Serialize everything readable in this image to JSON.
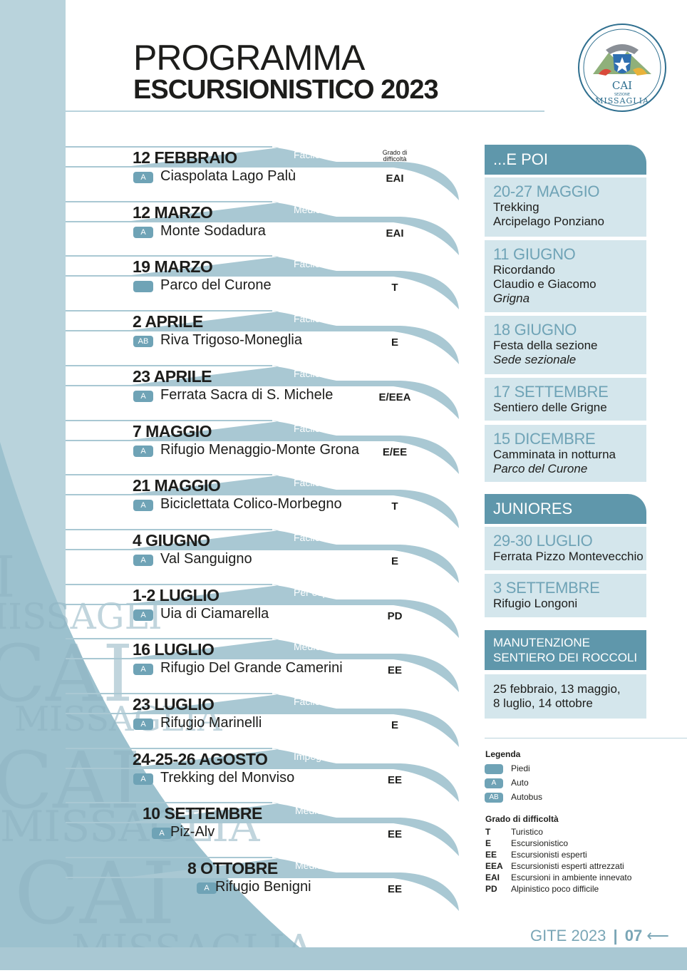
{
  "title": {
    "line1": "PROGRAMMA",
    "line2": "ESCURSIONISTICO 2023"
  },
  "logo": {
    "text": "CAI",
    "subtext": "SEZIONE",
    "name": "MISSAGLIA"
  },
  "grade_header": {
    "line1": "Grado di",
    "line2": "difficoltà"
  },
  "excursions": [
    {
      "date": "12 FEBBRAIO",
      "level": "Facile",
      "transport": "A",
      "place": "Ciaspolata Lago Palù",
      "grade": "EAI"
    },
    {
      "date": "12 MARZO",
      "level": "Medio impegno",
      "transport": "A",
      "place": "Monte Sodadura",
      "grade": "EAI"
    },
    {
      "date": "19 MARZO",
      "level": "Facile",
      "transport": "",
      "place": "Parco del Curone",
      "grade": "T"
    },
    {
      "date": "2 APRILE",
      "level": "Facile",
      "transport": "AB",
      "place": "Riva Trigoso-Moneglia",
      "grade": "E"
    },
    {
      "date": "23 APRILE",
      "level": "Facile/Per esperti",
      "transport": "A",
      "place": "Ferrata Sacra di S. Michele",
      "grade": "E/EEA"
    },
    {
      "date": "7 MAGGIO",
      "level": "Facile/Medio impegno",
      "transport": "A",
      "place": "Rifugio Menaggio-Monte Grona",
      "grade": "E/EE"
    },
    {
      "date": "21 MAGGIO",
      "level": "Facile",
      "transport": "A",
      "place": "Biciclettata Colico-Morbegno",
      "grade": "T"
    },
    {
      "date": "4 GIUGNO",
      "level": "Facile",
      "transport": "A",
      "place": "Val Sanguigno",
      "grade": "E"
    },
    {
      "date": "1-2 LUGLIO",
      "level": "Per esperti",
      "transport": "A",
      "place": "Uia di Ciamarella",
      "grade": "PD"
    },
    {
      "date": "16 LUGLIO",
      "level": "Medio impegno",
      "transport": "A",
      "place": "Rifugio Del Grande Camerini",
      "grade": "EE"
    },
    {
      "date": "23 LUGLIO",
      "level": "Facile",
      "transport": "A",
      "place": "Rifugio Marinelli",
      "grade": "E"
    },
    {
      "date": "24-25-26 AGOSTO",
      "level": "Impegnativa",
      "transport": "A",
      "place": "Trekking del Monviso",
      "grade": "EE"
    },
    {
      "date": "10 SETTEMBRE",
      "level": "Medio impegno",
      "transport": "A",
      "place": "Piz-Alv",
      "grade": "EE"
    },
    {
      "date": "8 OTTOBRE",
      "level": "Medio impegno",
      "transport": "A",
      "place": "Rifugio Benigni",
      "grade": "EE"
    }
  ],
  "epoi": {
    "heading": "...E POI",
    "items": [
      {
        "date": "20-27 MAGGIO",
        "lines": [
          "Trekking",
          "Arcipelago Ponziano"
        ],
        "italic": ""
      },
      {
        "date": "11 GIUGNO",
        "lines": [
          "Ricordando",
          "Claudio e Giacomo"
        ],
        "italic": "Grigna"
      },
      {
        "date": "18 GIUGNO",
        "lines": [
          "Festa della sezione"
        ],
        "italic": "Sede sezionale"
      },
      {
        "date": "17 SETTEMBRE",
        "lines": [
          "Sentiero delle Grigne"
        ],
        "italic": ""
      },
      {
        "date": "15 DICEMBRE",
        "lines": [
          "Camminata in notturna"
        ],
        "italic": "Parco del Curone"
      }
    ]
  },
  "juniores": {
    "heading": "JUNIORES",
    "items": [
      {
        "date": "29-30 LUGLIO",
        "lines": [
          "Ferrata Pizzo Montevecchio"
        ]
      },
      {
        "date": "3 SETTEMBRE",
        "lines": [
          "Rifugio Longoni"
        ]
      }
    ]
  },
  "manutenzione": {
    "heading1": "MANUTENZIONE",
    "heading2": "SENTIERO DEI ROCCOLI",
    "line1": "25 febbraio, 13 maggio,",
    "line2": "8 luglio, 14 ottobre"
  },
  "legend": {
    "title": "Legenda",
    "transport": [
      {
        "badge": "",
        "label": "Piedi"
      },
      {
        "badge": "A",
        "label": "Auto"
      },
      {
        "badge": "AB",
        "label": "Autobus"
      }
    ],
    "grade_title": "Grado di difficoltà",
    "grades": [
      {
        "code": "T",
        "label": "Turistico"
      },
      {
        "code": "E",
        "label": "Escursionistico"
      },
      {
        "code": "EE",
        "label": "Escursionisti esperti"
      },
      {
        "code": "EEA",
        "label": "Escursionisti esperti attrezzati"
      },
      {
        "code": "EAI",
        "label": "Escursioni in ambiente innevato"
      },
      {
        "code": "PD",
        "label": "Alpinistico poco difficile"
      }
    ]
  },
  "footer": {
    "label": "GITE 2023",
    "page": "07",
    "arrow": "⟵"
  },
  "watermark": [
    "I",
    "MISSAGLI",
    "CAI",
    "MISSAGLIA",
    "CAI",
    "MISSAGLIA",
    "CAI",
    "MISSAGLIA"
  ],
  "colors": {
    "accent": "#6fa3b6",
    "band": "#a9c8d3",
    "light": "#d4e6ec",
    "dark_header": "#5f97ab"
  }
}
